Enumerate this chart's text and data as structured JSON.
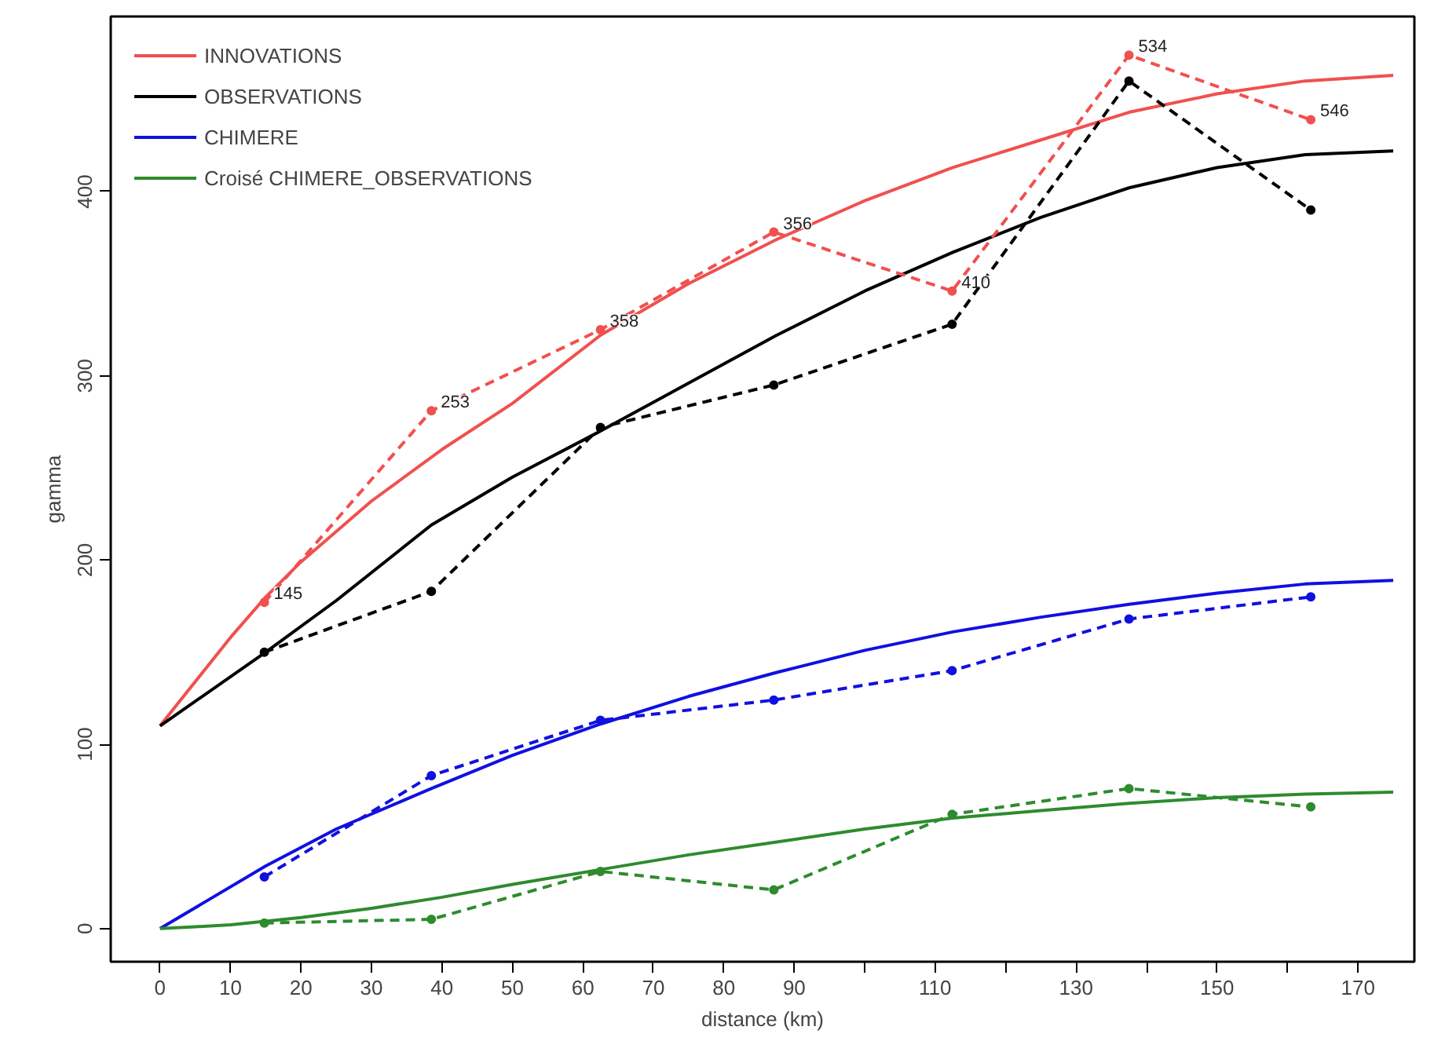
{
  "chart_data": {
    "type": "line",
    "xlabel": "distance (km)",
    "ylabel": "gamma",
    "xlim": [
      -7,
      178
    ],
    "ylim": [
      -18,
      495
    ],
    "xticks": [
      0,
      10,
      20,
      30,
      40,
      50,
      60,
      70,
      80,
      90,
      {
        "value": 100,
        "label": null
      },
      110,
      {
        "value": 120,
        "label": null
      },
      130,
      {
        "value": 140,
        "label": null
      },
      150,
      {
        "value": 160,
        "label": null
      },
      170
    ],
    "yticks": [
      0,
      100,
      200,
      300,
      400
    ],
    "grid": false,
    "legend": "top left",
    "series": [
      {
        "name": "INNOVATIONS",
        "color": "#f0504f",
        "line_style": "solid",
        "marker": "none",
        "x": [
          0,
          10,
          15,
          20,
          30,
          40,
          50,
          62.5,
          75,
          87.5,
          100,
          112.5,
          125,
          137.5,
          150,
          162.5,
          175
        ],
        "values": [
          110,
          158,
          180,
          199,
          232,
          260,
          285,
          322,
          350,
          374,
          395,
          413,
          428,
          443,
          453,
          460,
          463
        ]
      },
      {
        "name": "OBSERVATIONS",
        "color": "#000000",
        "line_style": "solid",
        "marker": "none",
        "x": [
          0,
          15,
          25,
          38.5,
          50,
          62.5,
          75,
          87.5,
          100,
          112.5,
          125,
          137.5,
          150,
          162.5,
          175
        ],
        "values": [
          110,
          150,
          178,
          219,
          245,
          270,
          296,
          322,
          346,
          367,
          386,
          402,
          413,
          420,
          422
        ]
      },
      {
        "name": "CHIMERE",
        "color": "#1010e0",
        "line_style": "solid",
        "marker": "none",
        "x": [
          0,
          7.5,
          15,
          25,
          38.5,
          50,
          62.5,
          75,
          87.5,
          100,
          112.5,
          125,
          137.5,
          150,
          162.5,
          175
        ],
        "values": [
          0,
          17,
          34,
          54,
          76,
          94,
          111,
          126,
          139,
          151,
          161,
          169,
          176,
          182,
          187,
          189
        ]
      },
      {
        "name": "Croisé CHIMERE_OBSERVATIONS",
        "color": "#2e8b2e",
        "line_style": "solid",
        "marker": "none",
        "x": [
          0,
          5,
          10,
          20,
          30,
          40,
          50,
          62.5,
          75,
          87.5,
          100,
          112.5,
          125,
          137.5,
          150,
          162.5,
          175
        ],
        "values": [
          0,
          1,
          2,
          6,
          11,
          17,
          24,
          32,
          40,
          47,
          54,
          60,
          64,
          68,
          71,
          73,
          74
        ]
      },
      {
        "color": "#f0504f",
        "line_style": "dashed",
        "marker": "circle",
        "x": [
          14.8,
          38.5,
          62.5,
          87.1,
          112.4,
          137.5,
          163.3
        ],
        "values": [
          177,
          281,
          325,
          378,
          346,
          474,
          439
        ]
      },
      {
        "color": "#000000",
        "line_style": "dashed",
        "marker": "circle",
        "x": [
          14.8,
          38.5,
          62.5,
          87.1,
          112.4,
          137.5,
          163.3
        ],
        "values": [
          150,
          183,
          272,
          295,
          328,
          460,
          390
        ]
      },
      {
        "color": "#1010e0",
        "line_style": "dashed",
        "marker": "circle",
        "x": [
          14.8,
          38.5,
          62.5,
          87.1,
          112.4,
          137.5,
          163.3
        ],
        "values": [
          28,
          83,
          113,
          124,
          140,
          168,
          180
        ]
      },
      {
        "color": "#2e8b2e",
        "line_style": "dashed",
        "marker": "circle",
        "x": [
          14.8,
          38.5,
          62.5,
          87.1,
          112.4,
          137.5,
          163.3
        ],
        "values": [
          3,
          5,
          31,
          21,
          62,
          76,
          66
        ]
      }
    ],
    "annotations": [
      {
        "text": "145",
        "x": 14.8,
        "y": 177
      },
      {
        "text": "253",
        "x": 38.5,
        "y": 281
      },
      {
        "text": "358",
        "x": 62.5,
        "y": 325
      },
      {
        "text": "356",
        "x": 87.1,
        "y": 378
      },
      {
        "text": "410",
        "x": 112.4,
        "y": 346
      },
      {
        "text": "534",
        "x": 137.5,
        "y": 474
      },
      {
        "text": "546",
        "x": 163.3,
        "y": 439
      }
    ]
  }
}
